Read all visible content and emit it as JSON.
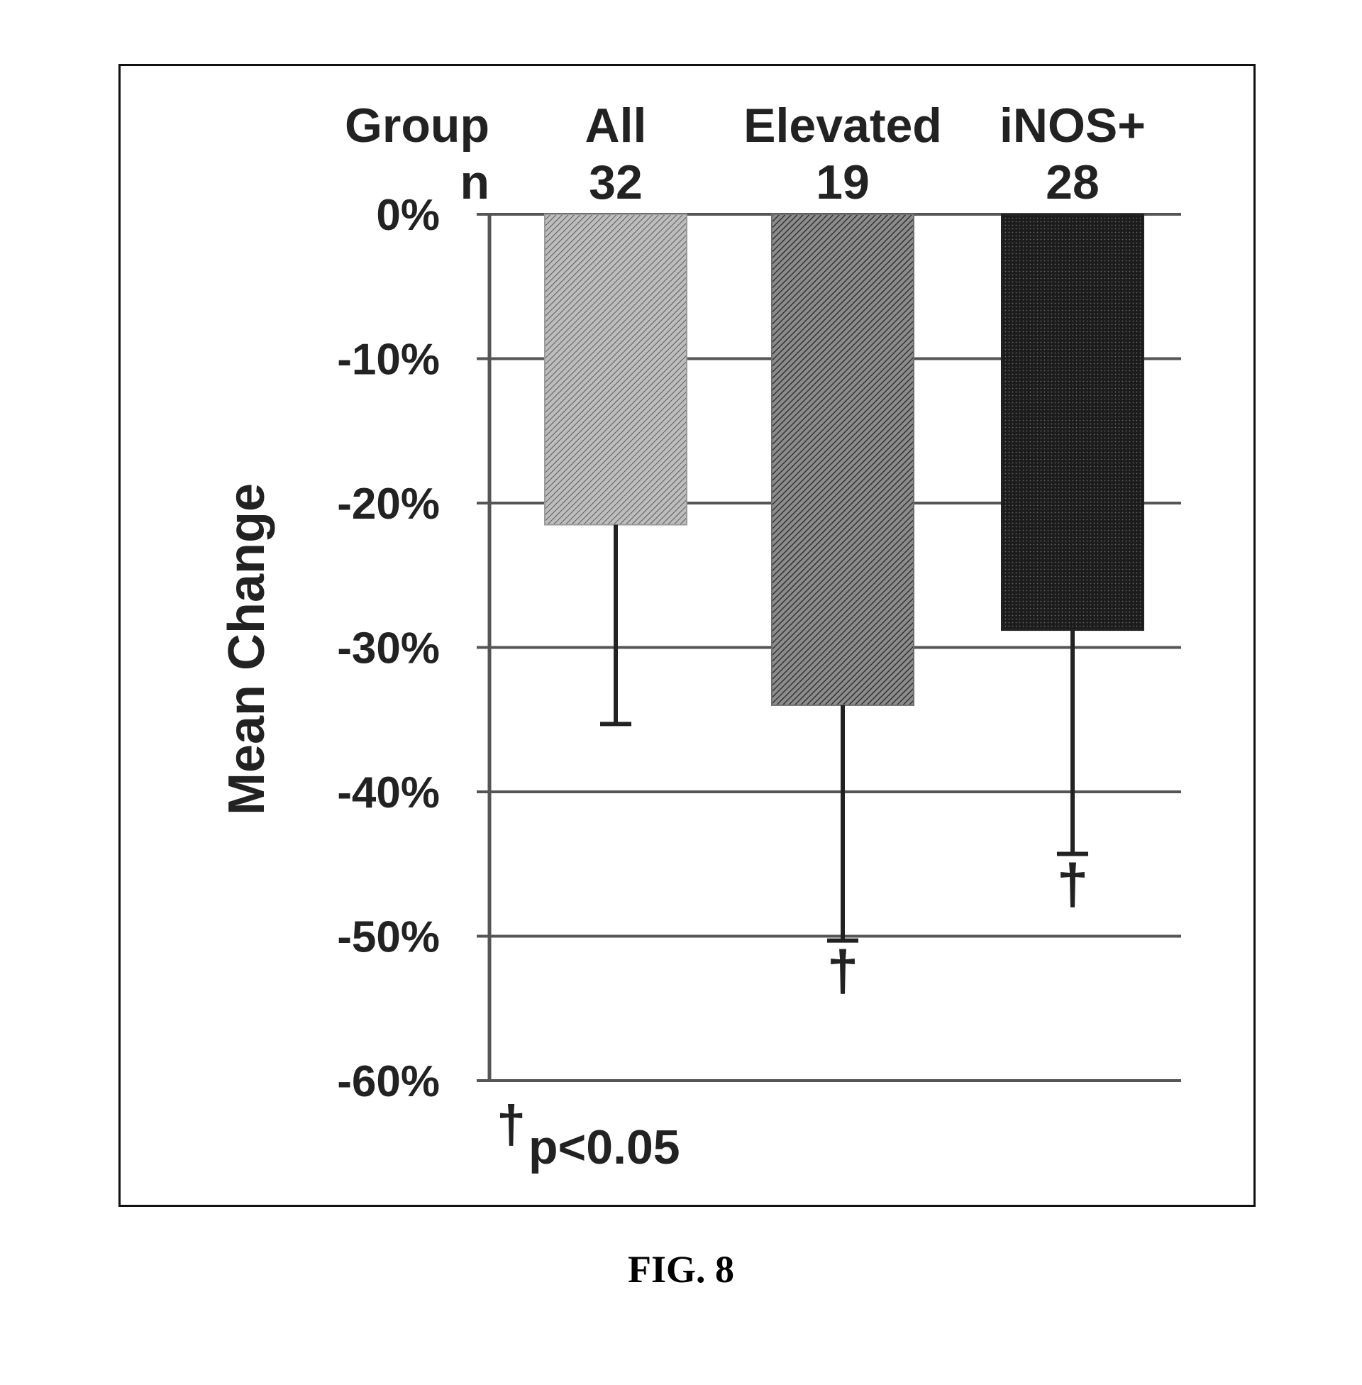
{
  "figure": {
    "caption": "FIG. 8",
    "group_header": "Group",
    "n_header": "n",
    "significance_note": "p<0.05"
  },
  "chart_data": {
    "type": "bar",
    "categories": [
      "All",
      "Elevated",
      "iNOS+"
    ],
    "n": [
      "32",
      "19",
      "28"
    ],
    "values": [
      -21.5,
      -34,
      -28.8
    ],
    "error_bar_lower": [
      -35.3,
      -50.3,
      -44.3
    ],
    "significant": [
      false,
      true,
      true
    ],
    "significance_marker": "†",
    "ylabel": "Mean Change",
    "ylim": [
      -60,
      0
    ],
    "yticks": [
      0,
      -10,
      -20,
      -30,
      -40,
      -50,
      -60
    ],
    "ytick_labels": [
      "0%",
      "-10%",
      "-20%",
      "-30%",
      "-40%",
      "-50%",
      "-60%"
    ],
    "grid": true,
    "bar_colors": [
      "#9a9a9a",
      "#6e6e6e",
      "#222222"
    ]
  }
}
